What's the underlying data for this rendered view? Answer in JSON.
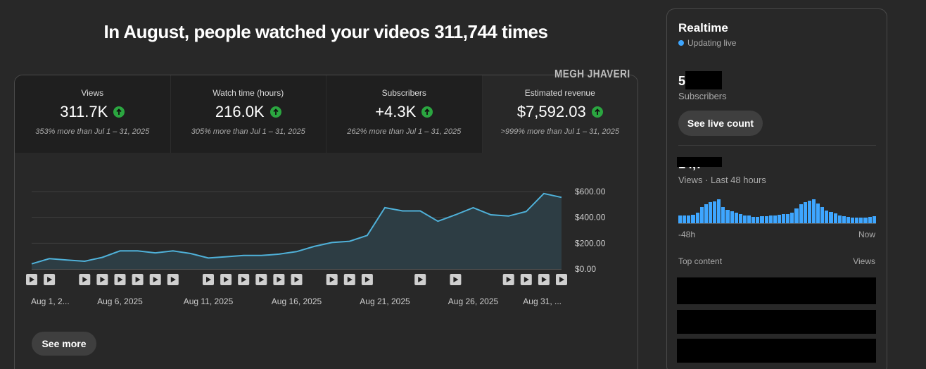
{
  "headline": "In August, people watched your videos 311,744 times",
  "watermark": "MEGH JHAVERI",
  "metrics": [
    {
      "label": "Views",
      "value": "311.7K",
      "comparison": "353% more than Jul 1 – 31, 2025",
      "trend": "up"
    },
    {
      "label": "Watch time (hours)",
      "value": "216.0K",
      "comparison": "305% more than Jul 1 – 31, 2025",
      "trend": "up"
    },
    {
      "label": "Subscribers",
      "value": "+4.3K",
      "comparison": "262% more than Jul 1 – 31, 2025",
      "trend": "up"
    },
    {
      "label": "Estimated revenue",
      "value": "$7,592.03",
      "comparison": ">999% more than Jul 1 – 31, 2025",
      "trend": "up"
    }
  ],
  "active_metric": 3,
  "see_more_label": "See more",
  "chart_data": {
    "type": "area",
    "x": [
      "Aug 1",
      "Aug 2",
      "Aug 3",
      "Aug 4",
      "Aug 5",
      "Aug 6",
      "Aug 7",
      "Aug 8",
      "Aug 9",
      "Aug 10",
      "Aug 11",
      "Aug 12",
      "Aug 13",
      "Aug 14",
      "Aug 15",
      "Aug 16",
      "Aug 17",
      "Aug 18",
      "Aug 19",
      "Aug 20",
      "Aug 21",
      "Aug 22",
      "Aug 23",
      "Aug 24",
      "Aug 25",
      "Aug 26",
      "Aug 27",
      "Aug 28",
      "Aug 29",
      "Aug 30",
      "Aug 31"
    ],
    "values": [
      40,
      80,
      70,
      60,
      90,
      140,
      140,
      125,
      140,
      120,
      85,
      95,
      105,
      105,
      115,
      135,
      175,
      205,
      215,
      260,
      475,
      450,
      450,
      370,
      420,
      475,
      420,
      410,
      445,
      585,
      555
    ],
    "x_tick_labels": [
      "Aug 1, 2...",
      "Aug 6, 2025",
      "Aug 11, 2025",
      "Aug 16, 2025",
      "Aug 21, 2025",
      "Aug 26, 2025",
      "Aug 31, ..."
    ],
    "y_tick_labels": [
      "$600.00",
      "$400.00",
      "$200.00",
      "$0.00"
    ],
    "ylim": [
      0,
      600
    ],
    "grid": true,
    "video_markers": [
      1,
      2,
      4,
      5,
      6,
      7,
      8,
      9,
      11,
      12,
      13,
      14,
      15,
      16,
      18,
      19,
      20,
      23,
      25,
      28,
      29,
      30,
      31
    ],
    "color": "#4fb1d9"
  },
  "realtime": {
    "title": "Realtime",
    "status": "Updating live",
    "subscribers_visible": "5",
    "subscribers_label": "Subscribers",
    "live_count_button": "See live count",
    "views_partial": "14,7",
    "views_label": "Views · Last 48 hours",
    "bar_levels": [
      0.3,
      0.3,
      0.3,
      0.32,
      0.4,
      0.6,
      0.72,
      0.78,
      0.82,
      0.9,
      0.6,
      0.5,
      0.45,
      0.4,
      0.35,
      0.3,
      0.28,
      0.24,
      0.24,
      0.26,
      0.26,
      0.28,
      0.3,
      0.33,
      0.35,
      0.35,
      0.4,
      0.55,
      0.7,
      0.8,
      0.85,
      0.9,
      0.75,
      0.6,
      0.48,
      0.42,
      0.36,
      0.3,
      0.26,
      0.24,
      0.22,
      0.22,
      0.2,
      0.2,
      0.24,
      0.27
    ],
    "axis_start": "-48h",
    "axis_end": "Now",
    "top_content_label": "Top content",
    "top_views_label": "Views",
    "accent": "#3ea6ff"
  }
}
